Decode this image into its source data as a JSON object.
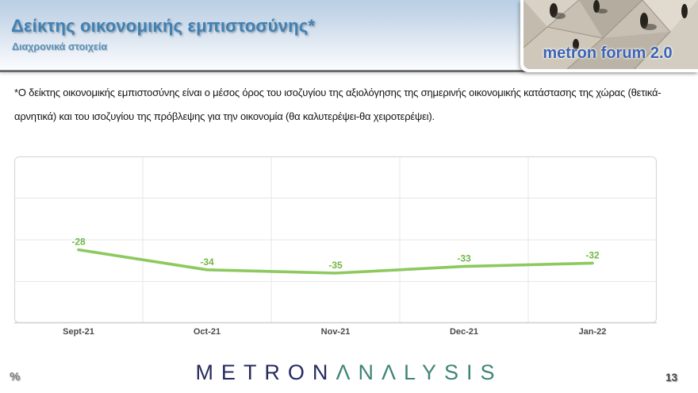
{
  "header": {
    "title": "Δείκτης οικονομικής εμπιστοσύνης*",
    "subtitle": "Διαχρονικά στοιχεία",
    "logo_text": "metron forum 2.0"
  },
  "body": {
    "footnote": "*Ο δείκτης οικονομικής εμπιστοσύνης είναι ο μέσος όρος του ισοζυγίου της αξιολόγησης της σημερινής οικονομικής κατάστασης της χώρας (θετικά-αρνητικά) και του ισοζυγίου της πρόβλεψης για την οικονομία (θα καλυτερέψει-θα χειροτερέψει)."
  },
  "chart_data": {
    "type": "line",
    "title": "",
    "categories": [
      "Sept-21",
      "Oct-21",
      "Nov-21",
      "Dec-21",
      "Jan-22"
    ],
    "series": [
      {
        "name": "Δείκτης οικονομικής εμπιστοσύνης",
        "values": [
          -28,
          -34,
          -35,
          -33,
          -32
        ]
      }
    ],
    "ylim": [
      -50,
      0
    ],
    "grid": true,
    "legend": "none",
    "data_labels": [
      "-28",
      "-34",
      "-35",
      "-33",
      "-32"
    ],
    "line_color": "#8cc95e",
    "label_color": "#74b648",
    "axis_label_color": "#4a4a4a",
    "gridline_color": "#e7e7e7",
    "border_color": "#d9d9d9"
  },
  "footer": {
    "unit_label": "%",
    "brand_primary": "METRON",
    "brand_secondary": "ΛNΛLYSIS",
    "page_number": "13"
  },
  "colors": {
    "header_title": "#4181b2",
    "header_gradient_top": "#b9cfe4",
    "brand_navy": "#262b5e",
    "brand_teal": "#3f8577",
    "logo_text_blue": "#3b64b4"
  }
}
